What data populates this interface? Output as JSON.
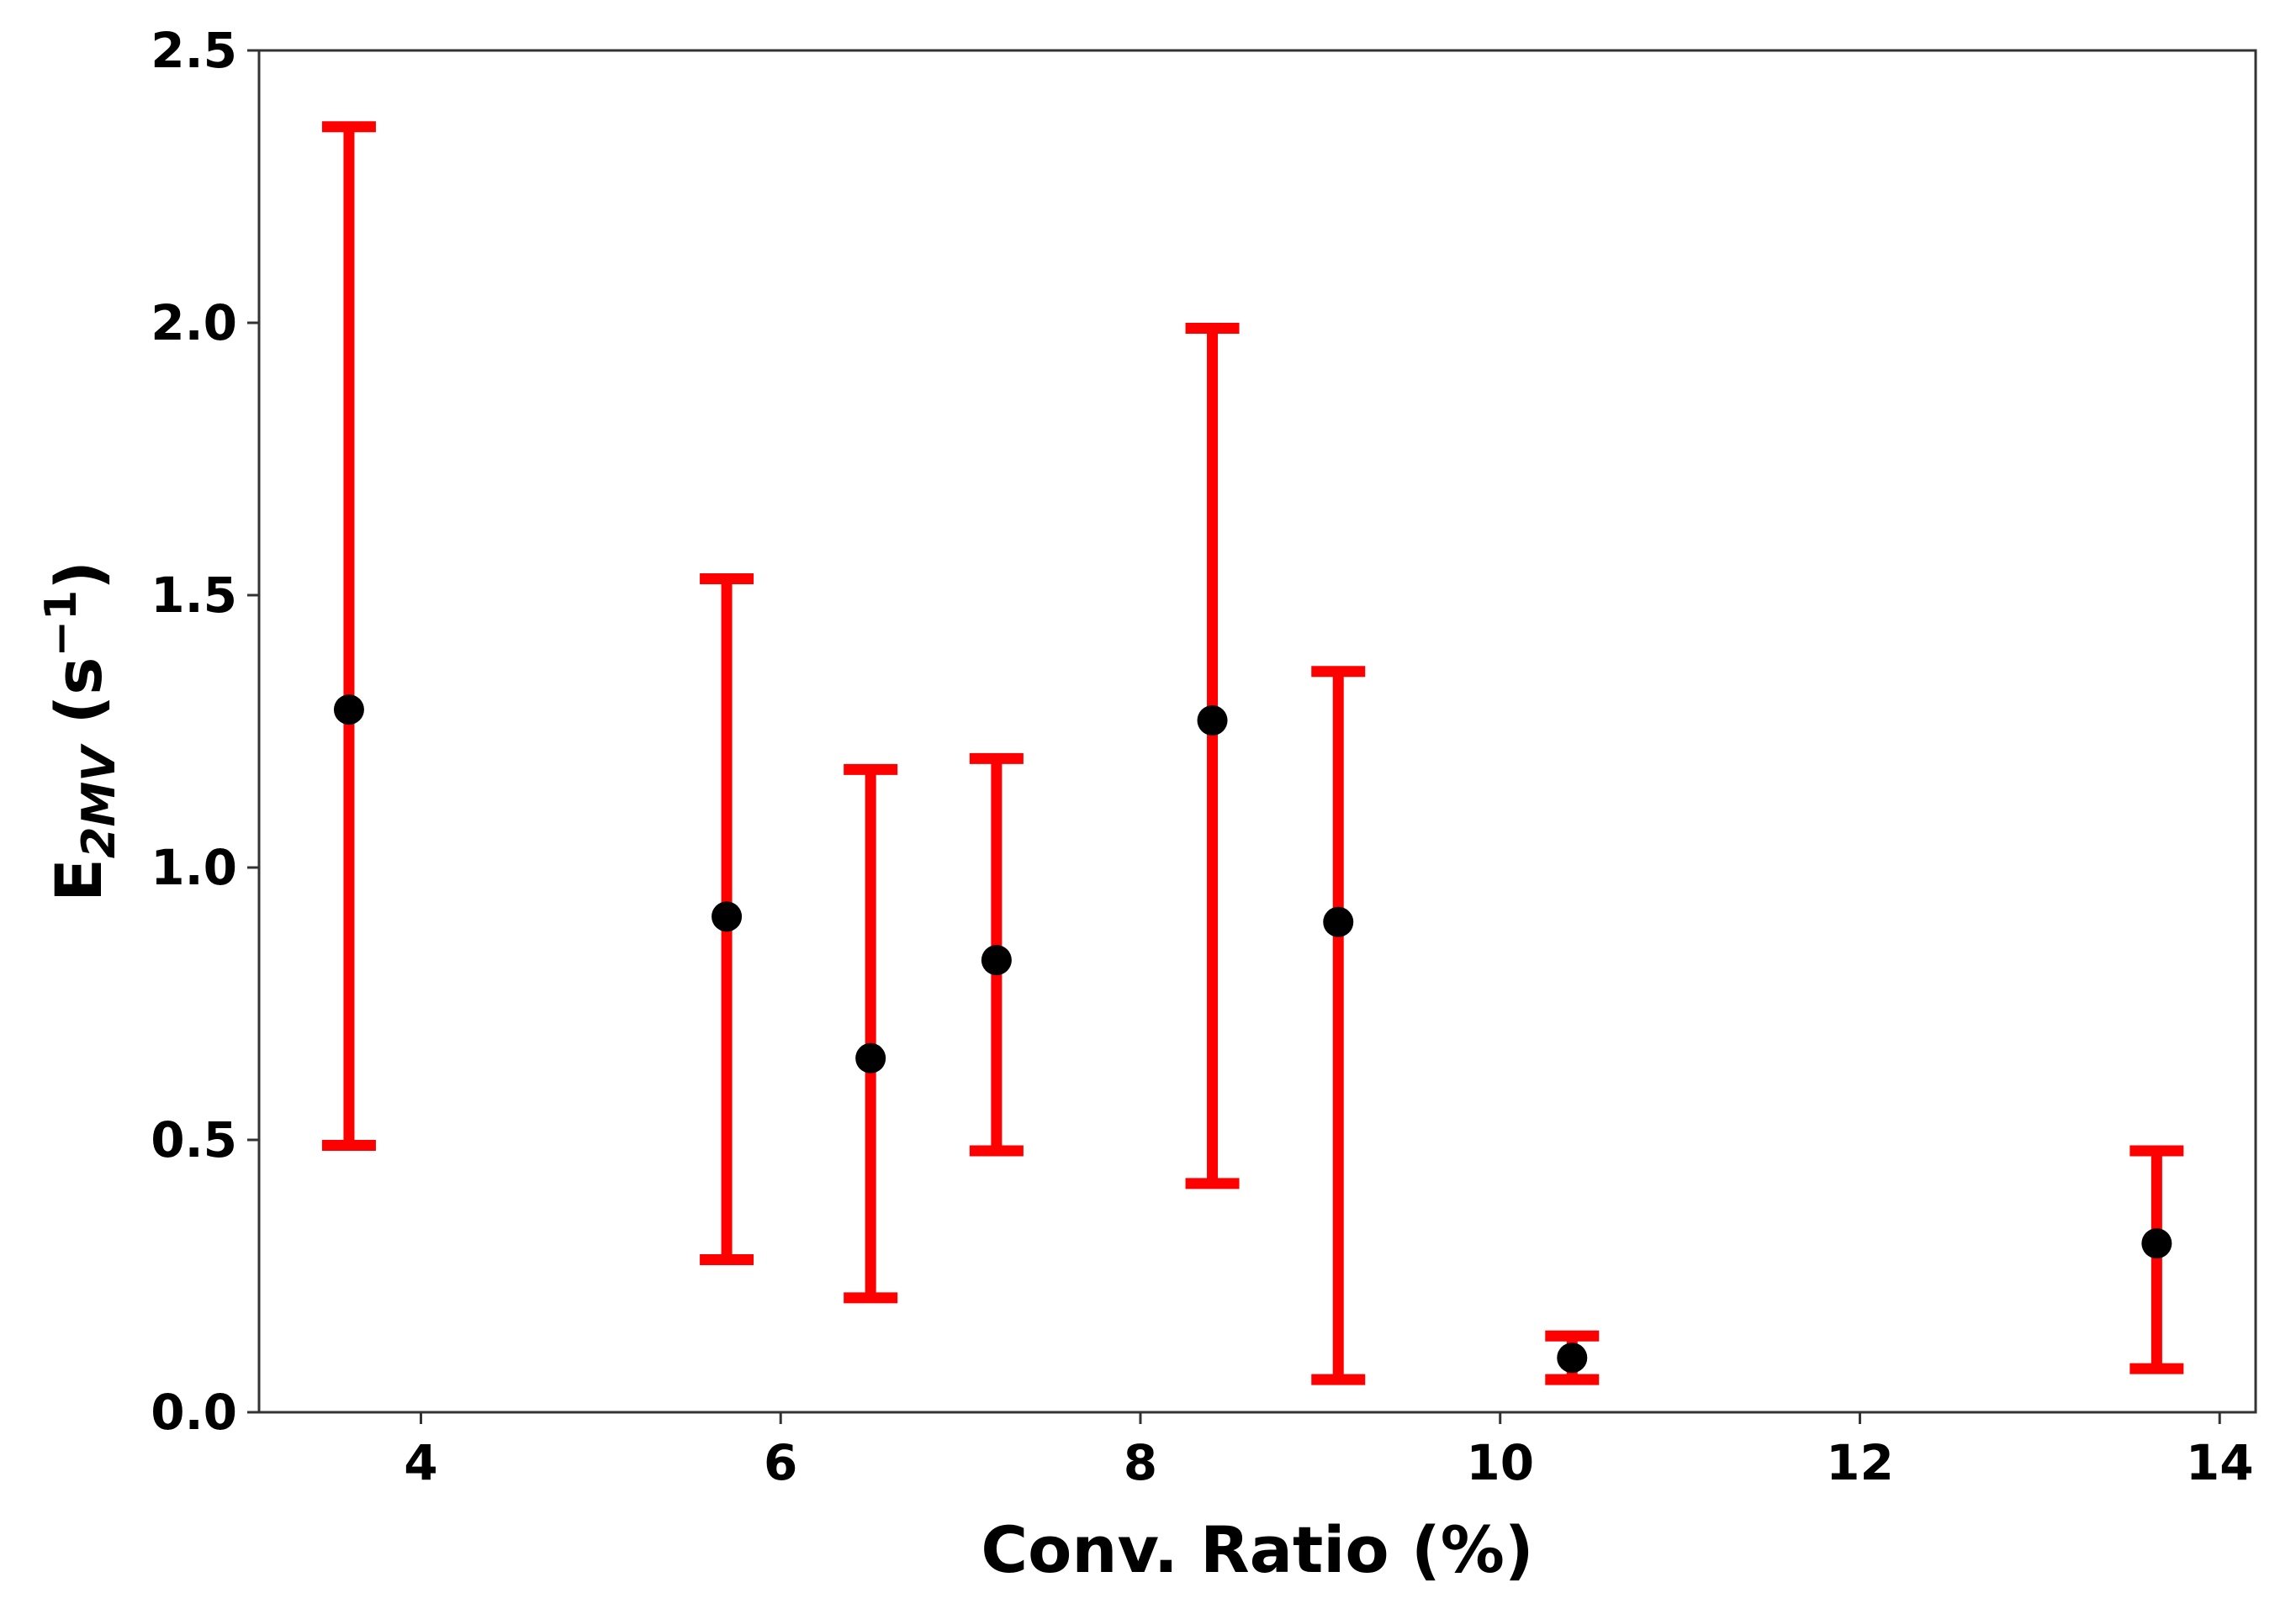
{
  "chart_data": {
    "type": "scatter",
    "xlabel": "Conv. Ratio (%)",
    "ylabel": {
      "base": "E",
      "subscript": "2MV",
      "unit_open": " (s",
      "unit_exponent": "−1",
      "unit_close": ")"
    },
    "xlim": [
      3.1,
      14.2
    ],
    "ylim": [
      0.0,
      2.5
    ],
    "xticks": [
      4,
      6,
      8,
      10,
      12,
      14
    ],
    "yticks": [
      0.0,
      0.5,
      1.0,
      1.5,
      2.0,
      2.5
    ],
    "xtick_labels": [
      "4",
      "6",
      "8",
      "10",
      "12",
      "14"
    ],
    "ytick_labels": [
      "0.0",
      "0.5",
      "1.0",
      "1.5",
      "2.0",
      "2.5"
    ],
    "grid": false,
    "legend": false,
    "series": [
      {
        "marker_color": "#000000",
        "errorbar_color": "#ff0000",
        "points": [
          {
            "x": 3.6,
            "y": 1.29,
            "lower": 0.49,
            "upper": 2.36
          },
          {
            "x": 5.7,
            "y": 0.91,
            "lower": 0.28,
            "upper": 1.53
          },
          {
            "x": 6.5,
            "y": 0.65,
            "lower": 0.21,
            "upper": 1.18
          },
          {
            "x": 7.2,
            "y": 0.83,
            "lower": 0.48,
            "upper": 1.2
          },
          {
            "x": 8.4,
            "y": 1.27,
            "lower": 0.42,
            "upper": 1.99
          },
          {
            "x": 9.1,
            "y": 0.9,
            "lower": 0.06,
            "upper": 1.36
          },
          {
            "x": 10.4,
            "y": 0.1,
            "lower": 0.06,
            "upper": 0.14
          },
          {
            "x": 13.65,
            "y": 0.31,
            "lower": 0.08,
            "upper": 0.48
          }
        ]
      }
    ]
  }
}
